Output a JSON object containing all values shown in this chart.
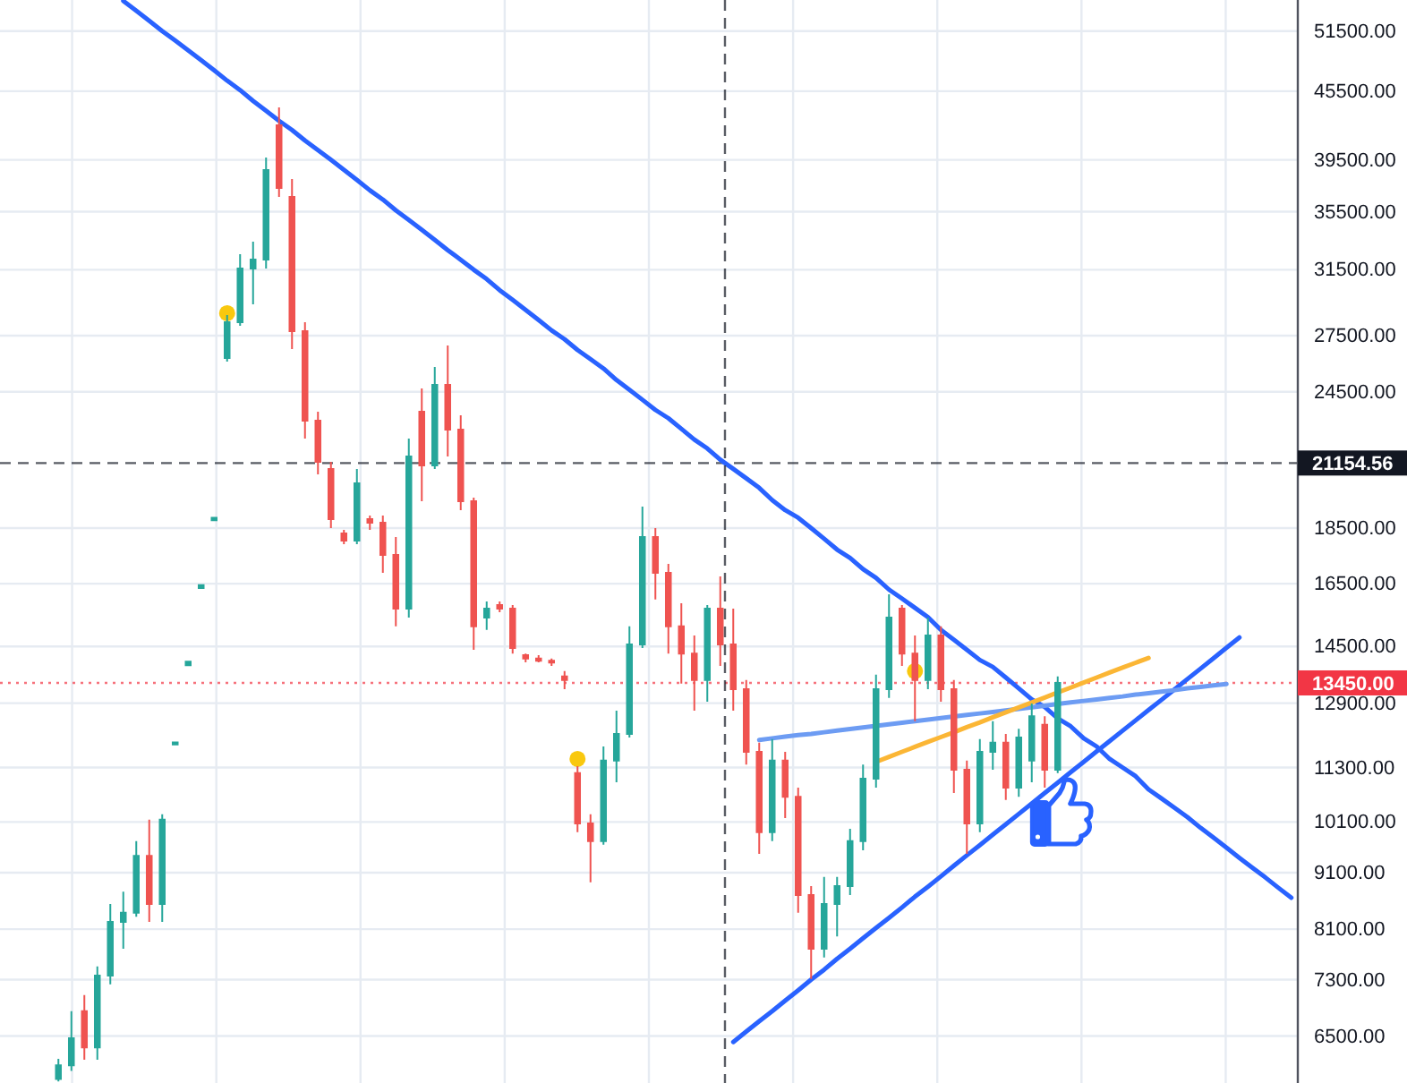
{
  "chart_data": {
    "type": "candlestick",
    "categories": [
      null,
      null,
      null,
      null,
      null,
      null,
      null,
      null,
      null,
      null,
      null,
      null,
      null,
      null,
      null,
      null,
      null,
      null,
      null,
      null,
      null,
      null,
      null,
      null,
      null,
      null,
      null,
      null,
      null,
      null,
      null,
      null,
      null,
      null,
      null,
      null,
      null,
      null,
      null,
      null,
      null,
      null,
      null,
      null,
      null,
      null,
      null,
      null,
      null,
      null,
      null,
      null,
      null,
      null,
      null,
      null,
      null,
      null,
      null,
      null,
      null,
      null,
      null,
      null,
      null,
      null,
      null,
      null,
      null,
      null,
      null,
      null,
      null,
      null,
      null,
      null,
      null,
      null,
      null,
      null,
      null,
      null,
      null,
      null,
      null,
      null,
      null,
      null,
      null,
      null,
      null,
      null,
      null,
      null,
      null,
      null,
      null,
      null,
      null,
      null
    ],
    "ohlc": [
      null,
      null,
      null,
      null,
      [
        5950,
        6200,
        5920,
        6120
      ],
      [
        6120,
        6840,
        6050,
        6470
      ],
      [
        6840,
        7070,
        6190,
        6350
      ],
      [
        6350,
        7500,
        6190,
        7360
      ],
      [
        7360,
        8530,
        7230,
        8220
      ],
      [
        8220,
        8750,
        7780,
        8380
      ],
      [
        8380,
        9710,
        8310,
        9420
      ],
      [
        9420,
        10150,
        8220,
        8530
      ],
      [
        8530,
        10260,
        8220,
        10150
      ],
      [
        11850,
        11900,
        11850,
        11900
      ],
      [
        13950,
        14050,
        13950,
        14050
      ],
      [
        16350,
        16450,
        16350,
        16450
      ],
      [
        18800,
        18900,
        18800,
        18900
      ],
      [
        26260,
        28690,
        26070,
        28270
      ],
      [
        28270,
        32520,
        28060,
        31580
      ],
      [
        31580,
        33370,
        29330,
        32160
      ],
      [
        32160,
        39690,
        31580,
        38680
      ],
      [
        42410,
        44000,
        36590,
        37280
      ],
      [
        36590,
        37970,
        26750,
        27760
      ],
      [
        27760,
        28270,
        22250,
        23080
      ],
      [
        23080,
        23510,
        20670,
        21210
      ],
      [
        20900,
        21210,
        18500,
        18850
      ],
      [
        18300,
        18430,
        17900,
        18030
      ],
      [
        18030,
        20900,
        17900,
        20290
      ],
      [
        18850,
        18990,
        18430,
        18710
      ],
      [
        18710,
        18990,
        16870,
        17510
      ],
      [
        17510,
        18160,
        15110,
        15670
      ],
      [
        15670,
        22250,
        15390,
        21440
      ],
      [
        23510,
        24670,
        19550,
        21050
      ],
      [
        21050,
        25780,
        20900,
        24850
      ],
      [
        24850,
        26950,
        21440,
        22660
      ],
      [
        22660,
        23340,
        19200,
        19550
      ],
      [
        19550,
        19700,
        14400,
        15110
      ],
      [
        15390,
        15910,
        15000,
        15670
      ],
      [
        15790,
        15910,
        15560,
        15670
      ],
      [
        15670,
        15790,
        14290,
        14450
      ],
      [
        14240,
        14290,
        14030,
        14140
      ],
      [
        14140,
        14240,
        14030,
        14080
      ],
      [
        14080,
        14140,
        13930,
        14030
      ],
      [
        13630,
        13780,
        13280,
        13530
      ],
      [
        11170,
        11330,
        9890,
        10070
      ],
      [
        10070,
        10260,
        8920,
        9710
      ],
      [
        9710,
        11800,
        9640,
        11460
      ],
      [
        11460,
        12700,
        10960,
        12110
      ],
      [
        12110,
        15110,
        12020,
        14560
      ],
      [
        14560,
        19340,
        14450,
        18160
      ],
      [
        18160,
        18500,
        15970,
        16870
      ],
      [
        16870,
        17190,
        14290,
        15110
      ],
      [
        15110,
        15850,
        13430,
        14290
      ],
      [
        14290,
        14830,
        12700,
        13530
      ],
      [
        13530,
        15790,
        12940,
        15670
      ],
      [
        15670,
        16750,
        13930,
        14560
      ],
      [
        14560,
        15670,
        12700,
        13280
      ],
      [
        13280,
        13530,
        11370,
        11670
      ],
      [
        11670,
        11890,
        9460,
        9890
      ],
      [
        9890,
        11980,
        9710,
        11460
      ],
      [
        11460,
        11670,
        10180,
        10640
      ],
      [
        10640,
        10840,
        8380,
        8690
      ],
      [
        8690,
        8850,
        7310,
        7780
      ],
      [
        7780,
        9020,
        7640,
        8530
      ],
      [
        8530,
        9020,
        7980,
        8850
      ],
      [
        8850,
        9960,
        8690,
        9710
      ],
      [
        9710,
        11370,
        9530,
        11040
      ],
      [
        11040,
        13680,
        10840,
        13280
      ],
      [
        13280,
        16140,
        13040,
        15390
      ],
      [
        15670,
        15790,
        13930,
        14290
      ],
      [
        14290,
        14830,
        12430,
        13530
      ],
      [
        13530,
        15390,
        13280,
        14830
      ],
      [
        14830,
        15110,
        12940,
        13280
      ],
      [
        13280,
        13530,
        10720,
        11250
      ],
      [
        11250,
        11460,
        9460,
        10070
      ],
      [
        10070,
        11980,
        9890,
        11670
      ],
      [
        11670,
        12430,
        11250,
        11890
      ],
      [
        11890,
        12110,
        10570,
        10840
      ],
      [
        10840,
        12240,
        10640,
        12020
      ],
      [
        11460,
        12890,
        10960,
        12560
      ],
      [
        12340,
        12560,
        10840,
        11250
      ],
      [
        11250,
        13630,
        11170,
        13450
      ],
      null,
      null,
      null,
      null,
      null,
      null,
      null,
      null,
      null,
      null,
      null,
      null,
      null,
      null,
      null,
      null,
      null,
      null
    ],
    "series": [
      {
        "type": "line",
        "color": "#2962ff",
        "values": [
          null,
          null,
          null,
          null,
          null,
          null,
          null,
          null,
          null,
          54800,
          53700,
          52600,
          51500,
          50500,
          49500,
          48500,
          47500,
          46500,
          45600,
          44600,
          43700,
          42800,
          42000,
          41100,
          40300,
          39500,
          38700,
          37900,
          37100,
          36400,
          35600,
          34900,
          34200,
          33500,
          32800,
          32150,
          31500,
          30900,
          30200,
          29600,
          29000,
          28400,
          27800,
          27300,
          26700,
          26200,
          25700,
          25100,
          24600,
          24100,
          23600,
          23200,
          22700,
          22200,
          21800,
          21300,
          20900,
          20500,
          20100,
          19600,
          19200,
          18900,
          18500,
          18100,
          17700,
          17400,
          17000,
          16700,
          16300,
          16000,
          15700,
          15400,
          15000,
          14700,
          14400,
          14100,
          13900,
          13600,
          13300,
          13000,
          12800,
          12500,
          12300,
          12000,
          11800,
          11500,
          11300,
          11100,
          10800,
          10600,
          10400,
          10200,
          9980,
          9780,
          9580,
          9380,
          9190,
          9010,
          8820,
          8640
        ]
      },
      {
        "type": "line",
        "color": "#2962ff",
        "values": [
          null,
          null,
          null,
          null,
          null,
          null,
          null,
          null,
          null,
          null,
          null,
          null,
          null,
          null,
          null,
          null,
          null,
          null,
          null,
          null,
          null,
          null,
          null,
          null,
          null,
          null,
          null,
          null,
          null,
          null,
          null,
          null,
          null,
          null,
          null,
          null,
          null,
          null,
          null,
          null,
          null,
          null,
          null,
          null,
          null,
          null,
          null,
          null,
          null,
          null,
          null,
          null,
          null,
          null,
          null,
          null,
          6420,
          6560,
          6700,
          6840,
          6990,
          7140,
          7300,
          7450,
          7620,
          7780,
          7950,
          8120,
          8290,
          8470,
          8660,
          8840,
          9030,
          9230,
          9430,
          9630,
          9840,
          10050,
          10270,
          10490,
          10720,
          10950,
          11190,
          11430,
          11680,
          11930,
          12190,
          12450,
          12720,
          12990,
          13270,
          13560,
          13850,
          14150,
          14460,
          14770,
          null,
          null,
          null,
          null
        ]
      },
      {
        "type": "line",
        "color": "#6d9cf3",
        "values": [
          null,
          null,
          null,
          null,
          null,
          null,
          null,
          null,
          null,
          null,
          null,
          null,
          null,
          null,
          null,
          null,
          null,
          null,
          null,
          null,
          null,
          null,
          null,
          null,
          null,
          null,
          null,
          null,
          null,
          null,
          null,
          null,
          null,
          null,
          null,
          null,
          null,
          null,
          null,
          null,
          null,
          null,
          null,
          null,
          null,
          null,
          null,
          null,
          null,
          null,
          null,
          null,
          null,
          null,
          null,
          null,
          null,
          null,
          11960,
          12000,
          12040,
          12080,
          12110,
          12150,
          12190,
          12230,
          12270,
          12310,
          12350,
          12390,
          12430,
          12470,
          12510,
          12550,
          12590,
          12630,
          12670,
          12710,
          12750,
          12790,
          12830,
          12880,
          12920,
          12960,
          13000,
          13040,
          13080,
          13130,
          13170,
          13210,
          13250,
          13300,
          13340,
          13380,
          13420,
          null,
          null,
          null,
          null,
          null
        ]
      },
      {
        "type": "line",
        "color": "#fbb635",
        "values": [
          null,
          null,
          null,
          null,
          null,
          null,
          null,
          null,
          null,
          null,
          null,
          null,
          null,
          null,
          null,
          null,
          null,
          null,
          null,
          null,
          null,
          null,
          null,
          null,
          null,
          null,
          null,
          null,
          null,
          null,
          null,
          null,
          null,
          null,
          null,
          null,
          null,
          null,
          null,
          null,
          null,
          null,
          null,
          null,
          null,
          null,
          null,
          null,
          null,
          null,
          null,
          null,
          null,
          null,
          null,
          null,
          null,
          null,
          null,
          null,
          null,
          null,
          null,
          null,
          null,
          null,
          null,
          11430,
          11550,
          11670,
          11790,
          11910,
          12030,
          12150,
          12280,
          12400,
          12530,
          12660,
          12790,
          12920,
          13050,
          13190,
          13320,
          13460,
          13600,
          13740,
          13880,
          14020,
          14160,
          null,
          null,
          null,
          null,
          null,
          null,
          null,
          null,
          null,
          null,
          null
        ]
      },
      {
        "type": "scatter",
        "color": "#f9c80e",
        "marker": "circle",
        "values": [
          null,
          null,
          null,
          null,
          null,
          null,
          null,
          null,
          null,
          null,
          null,
          null,
          null,
          null,
          null,
          null,
          null,
          28800,
          null,
          null,
          null,
          null,
          null,
          null,
          null,
          null,
          null,
          null,
          null,
          null,
          null,
          null,
          null,
          null,
          null,
          null,
          null,
          null,
          null,
          null,
          null,
          null,
          null,
          null,
          11500,
          null,
          null,
          null,
          null,
          null,
          null,
          null,
          null,
          null,
          null,
          null,
          null,
          null,
          null,
          null,
          null,
          null,
          null,
          null,
          null,
          null,
          null,
          null,
          null,
          null,
          13780,
          null,
          null,
          null,
          null,
          null,
          null,
          null,
          null,
          null,
          null,
          null,
          null,
          null,
          null,
          null,
          null,
          null,
          null,
          null,
          null,
          null,
          null,
          null,
          null,
          null,
          null,
          null,
          null,
          null
        ]
      }
    ],
    "ylim": [
      5900,
      54900
    ],
    "yticks": [
      {
        "value": 51500,
        "label": "51500.00"
      },
      {
        "value": 45500,
        "label": "45500.00"
      },
      {
        "value": 39500,
        "label": "39500.00"
      },
      {
        "value": 35500,
        "label": "35500.00"
      },
      {
        "value": 31500,
        "label": "31500.00"
      },
      {
        "value": 27500,
        "label": "27500.00"
      },
      {
        "value": 24500,
        "label": "24500.00"
      },
      {
        "value": 18500,
        "label": "18500.00"
      },
      {
        "value": 16500,
        "label": "16500.00"
      },
      {
        "value": 14500,
        "label": "14500.00"
      },
      {
        "value": 12900,
        "label": "12900.00"
      },
      {
        "value": 11300,
        "label": "11300.00"
      },
      {
        "value": 10100,
        "label": "10100.00"
      },
      {
        "value": 9100,
        "label": "9100.00"
      },
      {
        "value": 8100,
        "label": "8100.00"
      },
      {
        "value": 7300,
        "label": "7300.00"
      },
      {
        "value": 6500,
        "label": "6500.00"
      }
    ],
    "log": true,
    "grid": true,
    "tick_labels": "y",
    "ref_lines": [
      {
        "axis": "y",
        "value": 21154.56,
        "label": "21154.56",
        "color": "#131722",
        "line_style": "dashed"
      },
      {
        "axis": "y",
        "value": 13450,
        "label": "13450.00",
        "color": "#f23645",
        "line_style": "dotted"
      }
    ]
  }
}
